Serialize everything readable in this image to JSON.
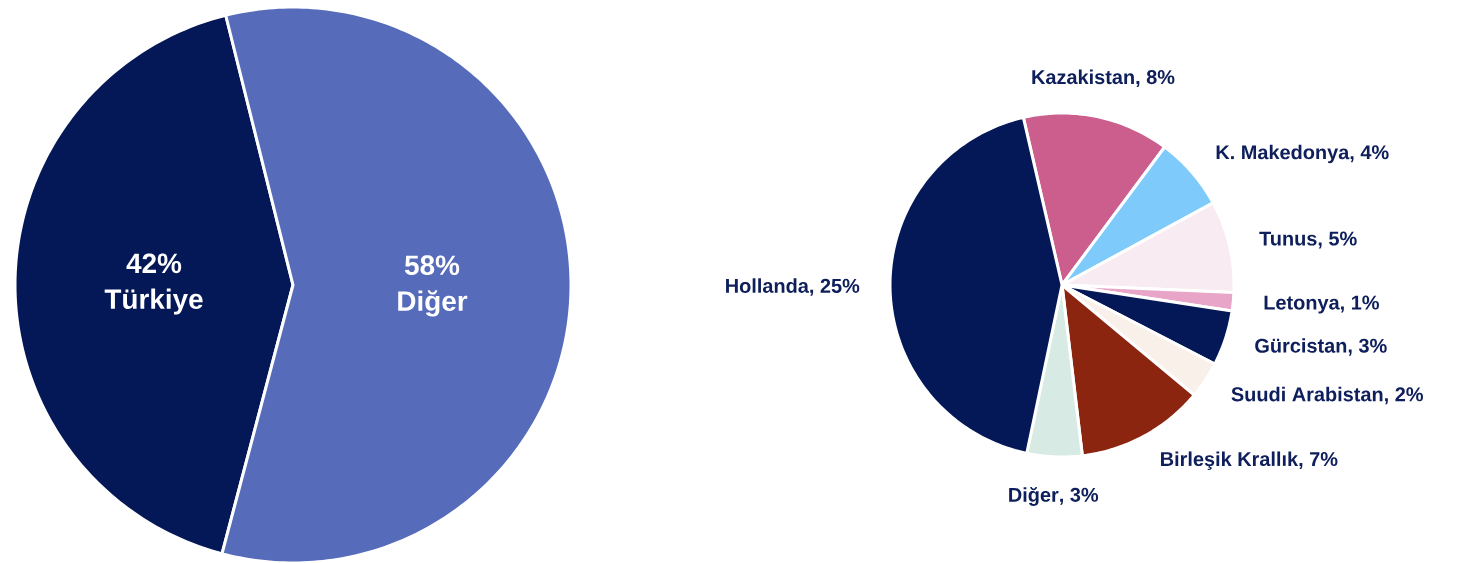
{
  "chart_data": [
    {
      "type": "pie",
      "categories": [
        "Türkiye",
        "Diğer"
      ],
      "values": [
        42,
        58
      ],
      "value_labels": [
        "42%",
        "58%"
      ],
      "colors": [
        "#041858",
        "#566cba"
      ]
    },
    {
      "type": "pie",
      "categories": [
        "Kazakistan",
        "K. Makedonya",
        "Tunus",
        "Letonya",
        "Gürcistan",
        "Suudi Arabistan",
        "Birleşik Krallık",
        "Diğer",
        "Hollanda"
      ],
      "values": [
        8,
        4,
        5,
        1,
        3,
        2,
        7,
        3,
        25
      ],
      "value_labels": [
        ", 8%",
        ", 4%",
        ", 5%",
        ", 1%",
        ", 3%",
        ", 2%",
        ", 7%",
        ", 3%",
        ", 25%"
      ],
      "colors": [
        "#cc5e8e",
        "#7ecbfb",
        "#f8ecf2",
        "#e8a5c8",
        "#041858",
        "#faf0ea",
        "#8b2510",
        "#d8eae4",
        "#041858"
      ]
    }
  ]
}
